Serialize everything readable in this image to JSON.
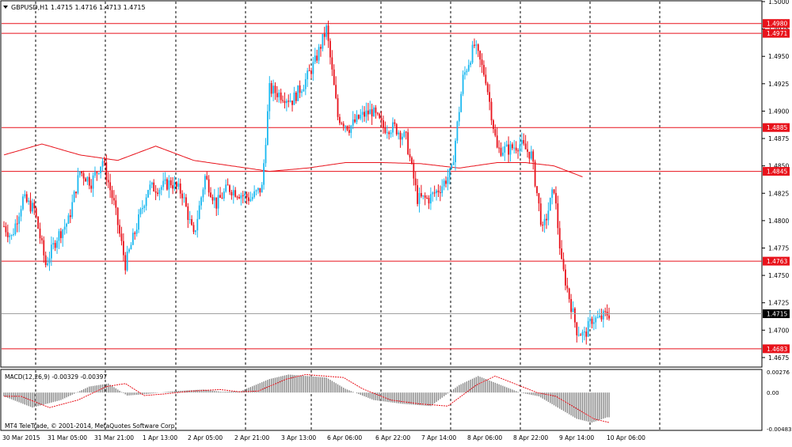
{
  "header": {
    "symbol": "GBPUSD,H1",
    "ohlc": "1.4715 1.4716 1.4713 1.4715"
  },
  "macd_panel": {
    "label": "MACD(12,26,9) -0.00329 -0.00397",
    "ticks": [
      "0.00276",
      "0.00",
      "-0.00483"
    ]
  },
  "copyright": "MT4 TeleTrade, © 2001-2014, MetaQuotes Software Corp.",
  "colors": {
    "bull": "#1ab8f0",
    "bear": "#e8121b",
    "level_line": "#e8121b",
    "ma": "#e8121b",
    "grid": "#000000",
    "current_price_bg": "#000000",
    "level_label_bg": "#e8121b",
    "macd_hist": "#808080",
    "macd_signal": "#e8121b"
  },
  "chart_data": {
    "type": "candlestick",
    "y_ticks": [
      "1.5000",
      "1.4975",
      "1.4950",
      "1.4925",
      "1.4900",
      "1.4875",
      "1.4850",
      "1.4825",
      "1.4800",
      "1.4775",
      "1.4750",
      "1.4725",
      "1.4700",
      "1.4675"
    ],
    "ylim": [
      1.4667,
      1.5
    ],
    "x_ticks": [
      "30 Mar 2015",
      "31 Mar 05:00",
      "31 Mar 21:00",
      "1 Apr 13:00",
      "2 Apr 05:00",
      "2 Apr 21:00",
      "3 Apr 13:00",
      "6 Apr 06:00",
      "6 Apr 22:00",
      "7 Apr 14:00",
      "8 Apr 06:00",
      "8 Apr 22:00",
      "9 Apr 14:00",
      "10 Apr 06:00"
    ],
    "horizontal_levels": [
      "1.4980",
      "1.4971",
      "1.4885",
      "1.4845",
      "1.4763",
      "1.4683"
    ],
    "current_price": "1.4715",
    "anchors": [
      [
        0,
        1.4795
      ],
      [
        4,
        1.4785
      ],
      [
        10,
        1.482
      ],
      [
        16,
        1.481
      ],
      [
        22,
        1.476
      ],
      [
        28,
        1.4785
      ],
      [
        34,
        1.48
      ],
      [
        40,
        1.4845
      ],
      [
        46,
        1.4835
      ],
      [
        52,
        1.4855
      ],
      [
        58,
        1.4815
      ],
      [
        64,
        1.476
      ],
      [
        70,
        1.4795
      ],
      [
        76,
        1.483
      ],
      [
        82,
        1.483
      ],
      [
        88,
        1.4835
      ],
      [
        94,
        1.4825
      ],
      [
        100,
        1.4785
      ],
      [
        106,
        1.484
      ],
      [
        112,
        1.4815
      ],
      [
        118,
        1.483
      ],
      [
        124,
        1.4825
      ],
      [
        130,
        1.482
      ],
      [
        136,
        1.483
      ],
      [
        140,
        1.492
      ],
      [
        146,
        1.4915
      ],
      [
        152,
        1.491
      ],
      [
        158,
        1.4925
      ],
      [
        164,
        1.4945
      ],
      [
        170,
        1.4975
      ],
      [
        176,
        1.4895
      ],
      [
        182,
        1.4885
      ],
      [
        188,
        1.4895
      ],
      [
        194,
        1.49
      ],
      [
        200,
        1.4885
      ],
      [
        206,
        1.4885
      ],
      [
        212,
        1.4875
      ],
      [
        218,
        1.482
      ],
      [
        224,
        1.482
      ],
      [
        230,
        1.483
      ],
      [
        236,
        1.4845
      ],
      [
        242,
        1.493
      ],
      [
        248,
        1.496
      ],
      [
        254,
        1.493
      ],
      [
        260,
        1.4865
      ],
      [
        266,
        1.4865
      ],
      [
        272,
        1.487
      ],
      [
        278,
        1.486
      ],
      [
        284,
        1.479
      ],
      [
        290,
        1.483
      ],
      [
        294,
        1.476
      ],
      [
        298,
        1.473
      ],
      [
        302,
        1.47
      ],
      [
        306,
        1.4695
      ],
      [
        310,
        1.471
      ],
      [
        314,
        1.471
      ],
      [
        318,
        1.4715
      ]
    ],
    "ma_anchors": [
      [
        0,
        1.486
      ],
      [
        20,
        1.487
      ],
      [
        40,
        1.486
      ],
      [
        60,
        1.4855
      ],
      [
        80,
        1.4868
      ],
      [
        100,
        1.4855
      ],
      [
        120,
        1.485
      ],
      [
        140,
        1.4845
      ],
      [
        160,
        1.4848
      ],
      [
        180,
        1.4853
      ],
      [
        200,
        1.4853
      ],
      [
        220,
        1.4852
      ],
      [
        240,
        1.4848
      ],
      [
        260,
        1.4853
      ],
      [
        275,
        1.4853
      ],
      [
        290,
        1.485
      ],
      [
        305,
        1.484
      ]
    ],
    "macd_anchors": [
      [
        0,
        -0.0005
      ],
      [
        15,
        -0.002
      ],
      [
        30,
        -0.001
      ],
      [
        45,
        0.0008
      ],
      [
        55,
        0.0012
      ],
      [
        65,
        -0.0004
      ],
      [
        75,
        -0.0002
      ],
      [
        90,
        0.0002
      ],
      [
        105,
        0.0004
      ],
      [
        115,
        0.0001
      ],
      [
        125,
        0.0002
      ],
      [
        140,
        0.0018
      ],
      [
        150,
        0.0024
      ],
      [
        170,
        0.002
      ],
      [
        180,
        0.0005
      ],
      [
        195,
        -0.001
      ],
      [
        210,
        -0.0015
      ],
      [
        225,
        -0.0018
      ],
      [
        240,
        0.001
      ],
      [
        250,
        0.0022
      ],
      [
        262,
        0.001
      ],
      [
        272,
        0.0
      ],
      [
        282,
        -0.0005
      ],
      [
        292,
        -0.002
      ],
      [
        302,
        -0.0035
      ],
      [
        310,
        -0.004
      ],
      [
        318,
        -0.0033
      ]
    ],
    "macd_ylim": [
      -0.00483,
      0.00276
    ]
  }
}
